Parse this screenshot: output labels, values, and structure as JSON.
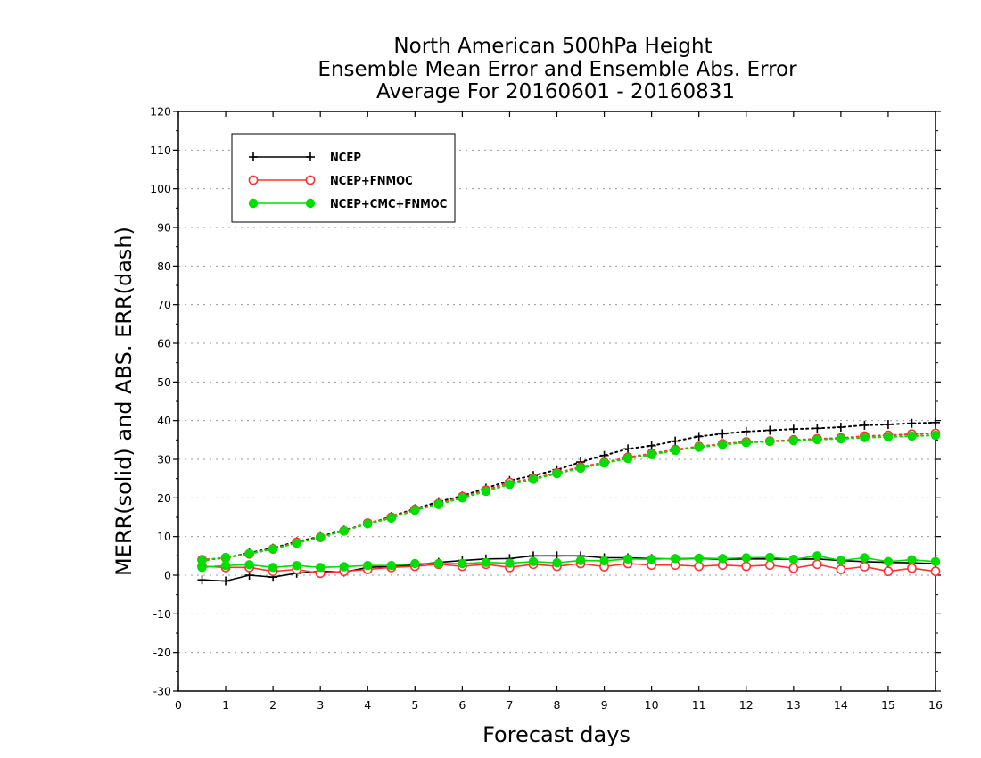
{
  "chart_data": {
    "type": "line",
    "title_lines": [
      "North American 500hPa Height",
      "Ensemble Mean Error and Ensemble Abs. Error",
      "Average For 20160601 - 20160831"
    ],
    "xlabel": "Forecast days",
    "ylabel": "MERR(solid) and ABS. ERR(dash)",
    "xlim": [
      0,
      16
    ],
    "ylim": [
      -30,
      120
    ],
    "xticks": [
      "0",
      "1",
      "2",
      "3",
      "4",
      "5",
      "6",
      "7",
      "8",
      "9",
      "10",
      "11",
      "12",
      "13",
      "14",
      "15",
      "16"
    ],
    "yticks": [
      "120",
      "110",
      "100",
      "90",
      "80",
      "70",
      "60",
      "50",
      "40",
      "30",
      "20",
      "10",
      "0",
      "-10",
      "-20",
      "-30"
    ],
    "grid": "horizontal dotted",
    "legend_position": "top-left",
    "x": [
      0.5,
      1,
      1.5,
      2,
      2.5,
      3,
      3.5,
      4,
      4.5,
      5,
      5.5,
      6,
      6.5,
      7,
      7.5,
      8,
      8.5,
      9,
      9.5,
      10,
      10.5,
      11,
      11.5,
      12,
      12.5,
      13,
      13.5,
      14,
      14.5,
      15,
      15.5,
      16
    ],
    "series": [
      {
        "name": "NCEP",
        "color": "#000000",
        "marker": "plus",
        "merr": [
          -1.2,
          -1.5,
          0,
          -0.5,
          0.5,
          1,
          0.8,
          2,
          2.3,
          2.7,
          3.3,
          3.8,
          4.2,
          4.3,
          5,
          5,
          5,
          4.5,
          4.5,
          4.3,
          4.2,
          4.3,
          4.1,
          4.2,
          4.2,
          4.1,
          4.2,
          3.8,
          3.5,
          3.3,
          3.2,
          3.0
        ],
        "abs_err": [
          3.8,
          4.5,
          5.8,
          7,
          8.7,
          10,
          11.7,
          13.3,
          15.2,
          17.2,
          19,
          20.5,
          22.5,
          24.5,
          25.8,
          27.3,
          29.3,
          31,
          32.7,
          33.5,
          34.7,
          35.9,
          36.6,
          37.2,
          37.5,
          37.8,
          38,
          38.3,
          38.8,
          39,
          39.3,
          39.5
        ]
      },
      {
        "name": "NCEP+FNMOC",
        "color": "#ff3333",
        "marker": "open-circle",
        "merr": [
          2.3,
          2,
          2,
          1,
          1.5,
          0.5,
          1,
          1.5,
          2,
          2.3,
          2.8,
          2.3,
          2.8,
          2,
          2.8,
          2.3,
          3,
          2.2,
          3,
          2.6,
          2.6,
          2.3,
          2.6,
          2.3,
          2.6,
          1.8,
          2.8,
          1.5,
          2.2,
          1,
          1.8,
          1
        ],
        "abs_err": [
          4,
          4.5,
          5.5,
          6.8,
          8.5,
          9.8,
          11.5,
          13.5,
          15,
          17,
          18.5,
          20.3,
          22,
          24,
          25,
          26.5,
          28,
          29.2,
          30.5,
          31.5,
          32.5,
          33.3,
          34,
          34.5,
          34.7,
          35,
          35.3,
          35.5,
          36,
          36.2,
          36.5,
          36.7
        ]
      },
      {
        "name": "NCEP+CMC+FNMOC",
        "color": "#00dd00",
        "marker": "filled-circle",
        "merr": [
          2,
          2.5,
          2.7,
          2,
          2.5,
          2,
          2.2,
          2.5,
          2.5,
          3,
          3,
          3,
          3.3,
          3.1,
          3.5,
          3.2,
          3.8,
          3.7,
          4.2,
          4.1,
          4.3,
          4.4,
          4.3,
          4.5,
          4.6,
          4.1,
          5,
          3.8,
          4.5,
          3.5,
          4,
          3.5
        ],
        "abs_err": [
          3.8,
          4.6,
          5.6,
          6.8,
          8.3,
          9.8,
          11.5,
          13.3,
          14.8,
          16.8,
          18.3,
          20,
          21.7,
          23.5,
          24.8,
          26.3,
          27.7,
          29,
          30.2,
          31.2,
          32.3,
          33.1,
          33.8,
          34.3,
          34.6,
          34.8,
          35.1,
          35.3,
          35.6,
          35.8,
          36,
          36.2
        ]
      }
    ]
  }
}
